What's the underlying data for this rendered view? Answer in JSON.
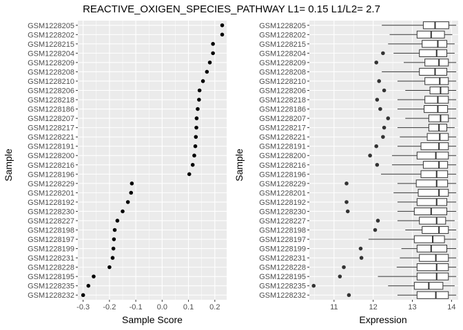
{
  "title": "REACTIVE_OXIGEN_SPECIES_PATHWAY L1= 0.15 L1/L2= 2.7",
  "samples": [
    "GSM1228205",
    "GSM1228202",
    "GSM1228215",
    "GSM1228204",
    "GSM1228209",
    "GSM1228208",
    "GSM1228210",
    "GSM1228206",
    "GSM1228218",
    "GSM1228186",
    "GSM1228207",
    "GSM1228217",
    "GSM1228221",
    "GSM1228191",
    "GSM1228200",
    "GSM1228216",
    "GSM1228196",
    "GSM1228229",
    "GSM1228201",
    "GSM1228192",
    "GSM1228230",
    "GSM1228227",
    "GSM1228198",
    "GSM1228197",
    "GSM1228199",
    "GSM1228231",
    "GSM1228228",
    "GSM1228195",
    "GSM1228235",
    "GSM1228232"
  ],
  "chart_data": [
    {
      "type": "scatter",
      "xlabel": "Sample Score",
      "ylabel": "Sample",
      "xlim": [
        -0.32,
        0.245
      ],
      "xticks": [
        -0.3,
        -0.2,
        -0.1,
        0.0,
        0.1,
        0.2
      ],
      "xtick_labels": [
        "-0.3",
        "-0.2",
        "-0.1",
        "0.0",
        "0.1",
        "0.2"
      ],
      "grid": true,
      "values": [
        0.228,
        0.228,
        0.193,
        0.193,
        0.181,
        0.17,
        0.155,
        0.142,
        0.14,
        0.135,
        0.131,
        0.13,
        0.128,
        0.126,
        0.122,
        0.116,
        0.103,
        -0.115,
        -0.118,
        -0.13,
        -0.15,
        -0.17,
        -0.18,
        -0.183,
        -0.185,
        -0.188,
        -0.2,
        -0.26,
        -0.28,
        -0.3
      ]
    },
    {
      "type": "boxplot",
      "xlabel": "Expression",
      "ylabel": "Sample",
      "xlim": [
        10.37,
        14.17
      ],
      "xticks": [
        11,
        12,
        13,
        14
      ],
      "xtick_labels": [
        "11",
        "12",
        "13",
        "14"
      ],
      "grid": true,
      "boxes": [
        {
          "whislo": 12.22,
          "q1": 13.28,
          "med": 13.58,
          "q3": 13.93,
          "whishi": 14.12,
          "outliers": []
        },
        {
          "whislo": 12.42,
          "q1": 13.12,
          "med": 13.48,
          "q3": 13.82,
          "whishi": 14.02,
          "outliers": []
        },
        {
          "whislo": 12.38,
          "q1": 13.25,
          "med": 13.65,
          "q3": 13.88,
          "whishi": 14.08,
          "outliers": []
        },
        {
          "whislo": 12.52,
          "q1": 13.18,
          "med": 13.62,
          "q3": 13.88,
          "whishi": 14.08,
          "outliers": [
            12.25
          ]
        },
        {
          "whislo": 12.78,
          "q1": 13.32,
          "med": 13.68,
          "q3": 13.92,
          "whishi": 14.12,
          "outliers": [
            12.08
          ]
        },
        {
          "whislo": 12.22,
          "q1": 13.18,
          "med": 13.58,
          "q3": 13.88,
          "whishi": 14.12,
          "outliers": []
        },
        {
          "whislo": 12.62,
          "q1": 13.32,
          "med": 13.7,
          "q3": 13.92,
          "whishi": 14.12,
          "outliers": [
            12.15
          ]
        },
        {
          "whislo": 12.82,
          "q1": 13.45,
          "med": 13.72,
          "q3": 13.92,
          "whishi": 14.12,
          "outliers": [
            12.28
          ]
        },
        {
          "whislo": 12.62,
          "q1": 13.32,
          "med": 13.65,
          "q3": 13.92,
          "whishi": 14.12,
          "outliers": [
            12.1
          ]
        },
        {
          "whislo": 12.62,
          "q1": 13.3,
          "med": 13.65,
          "q3": 13.9,
          "whishi": 14.12,
          "outliers": [
            12.18
          ]
        },
        {
          "whislo": 12.82,
          "q1": 13.42,
          "med": 13.72,
          "q3": 13.92,
          "whishi": 14.12,
          "outliers": [
            12.38
          ]
        },
        {
          "whislo": 12.62,
          "q1": 13.42,
          "med": 13.68,
          "q3": 13.88,
          "whishi": 14.08,
          "outliers": [
            12.28
          ]
        },
        {
          "whislo": 12.68,
          "q1": 13.38,
          "med": 13.7,
          "q3": 13.92,
          "whishi": 14.12,
          "outliers": [
            12.25
          ]
        },
        {
          "whislo": 12.62,
          "q1": 13.22,
          "med": 13.68,
          "q3": 13.92,
          "whishi": 14.12,
          "outliers": [
            12.08
          ]
        },
        {
          "whislo": 12.48,
          "q1": 13.12,
          "med": 13.6,
          "q3": 13.92,
          "whishi": 14.12,
          "outliers": [
            11.92
          ]
        },
        {
          "whislo": 12.48,
          "q1": 13.28,
          "med": 13.68,
          "q3": 13.9,
          "whishi": 14.12,
          "outliers": [
            12.1
          ]
        },
        {
          "whislo": 12.2,
          "q1": 13.22,
          "med": 13.62,
          "q3": 13.9,
          "whishi": 14.12,
          "outliers": []
        },
        {
          "whislo": 12.62,
          "q1": 13.1,
          "med": 13.62,
          "q3": 13.9,
          "whishi": 14.12,
          "outliers": [
            11.32
          ]
        },
        {
          "whislo": 12.52,
          "q1": 13.15,
          "med": 13.68,
          "q3": 13.92,
          "whishi": 14.12,
          "outliers": []
        },
        {
          "whislo": 12.62,
          "q1": 13.12,
          "med": 13.62,
          "q3": 13.88,
          "whishi": 14.12,
          "outliers": [
            11.32
          ]
        },
        {
          "whislo": 12.62,
          "q1": 13.05,
          "med": 13.48,
          "q3": 13.88,
          "whishi": 14.12,
          "outliers": [
            11.35
          ]
        },
        {
          "whislo": 12.62,
          "q1": 13.18,
          "med": 13.62,
          "q3": 13.85,
          "whishi": 14.08,
          "outliers": [
            12.12
          ]
        },
        {
          "whislo": 12.82,
          "q1": 13.25,
          "med": 13.68,
          "q3": 13.92,
          "whishi": 14.12,
          "outliers": [
            12.05
          ]
        },
        {
          "whislo": 11.88,
          "q1": 13.05,
          "med": 13.52,
          "q3": 13.82,
          "whishi": 14.12,
          "outliers": []
        },
        {
          "whislo": 12.72,
          "q1": 13.12,
          "med": 13.48,
          "q3": 13.88,
          "whishi": 14.12,
          "outliers": [
            11.68
          ]
        },
        {
          "whislo": 12.68,
          "q1": 13.18,
          "med": 13.6,
          "q3": 13.92,
          "whishi": 14.12,
          "outliers": [
            11.7
          ]
        },
        {
          "whislo": 12.6,
          "q1": 13.12,
          "med": 13.62,
          "q3": 13.92,
          "whishi": 14.12,
          "outliers": [
            11.25
          ]
        },
        {
          "whislo": 12.12,
          "q1": 13.12,
          "med": 13.62,
          "q3": 13.92,
          "whishi": 14.12,
          "outliers": [
            11.15
          ]
        },
        {
          "whislo": 12.38,
          "q1": 13.05,
          "med": 13.42,
          "q3": 13.78,
          "whishi": 14.08,
          "outliers": [
            10.48
          ]
        },
        {
          "whislo": 12.62,
          "q1": 13.12,
          "med": 13.6,
          "q3": 13.92,
          "whishi": 14.12,
          "outliers": [
            11.38
          ]
        }
      ]
    }
  ]
}
